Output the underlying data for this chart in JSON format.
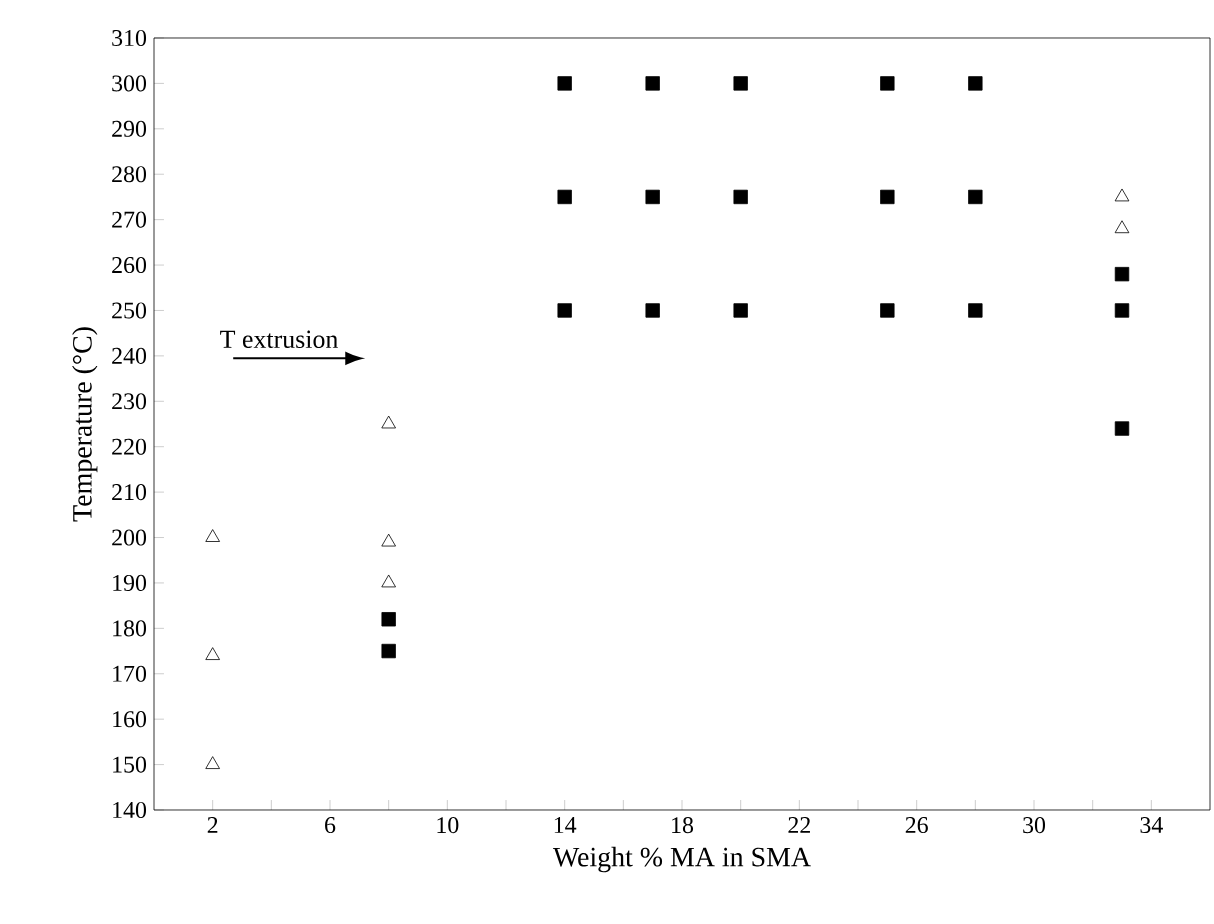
{
  "chart_data": {
    "type": "scatter",
    "xlabel": "Weight % MA in SMA",
    "ylabel": "Temperature (°C)",
    "xlim": [
      0,
      36
    ],
    "ylim": [
      140,
      310
    ],
    "xticks": [
      2,
      {
        "value": 4,
        "label": null
      },
      6,
      {
        "value": 8,
        "label": null
      },
      10,
      {
        "value": 12,
        "label": null
      },
      14,
      {
        "value": 16,
        "label": null
      },
      18,
      {
        "value": 20,
        "label": null
      },
      22,
      {
        "value": 24,
        "label": null
      },
      26,
      {
        "value": 28,
        "label": null
      },
      30,
      {
        "value": 32,
        "label": null
      },
      34
    ],
    "yticks": [
      140,
      150,
      160,
      170,
      180,
      190,
      200,
      210,
      220,
      230,
      240,
      250,
      260,
      270,
      280,
      290,
      300,
      310
    ],
    "series": [
      {
        "marker": "triangle",
        "color": "#000000",
        "x": [
          2,
          2,
          2,
          8,
          8,
          8,
          33,
          33
        ],
        "values": [
          200,
          174,
          150,
          225,
          199,
          190,
          275,
          268
        ]
      },
      {
        "marker": "square",
        "color": "#000000",
        "x": [
          8,
          8,
          14,
          14,
          14,
          17,
          17,
          17,
          20,
          20,
          20,
          25,
          25,
          25,
          28,
          28,
          28,
          33,
          33,
          33
        ],
        "values": [
          182,
          175,
          300,
          275,
          250,
          300,
          275,
          250,
          300,
          275,
          250,
          300,
          275,
          250,
          300,
          275,
          250,
          258,
          250,
          224
        ]
      }
    ],
    "annotations": [
      "T extrusion"
    ]
  }
}
